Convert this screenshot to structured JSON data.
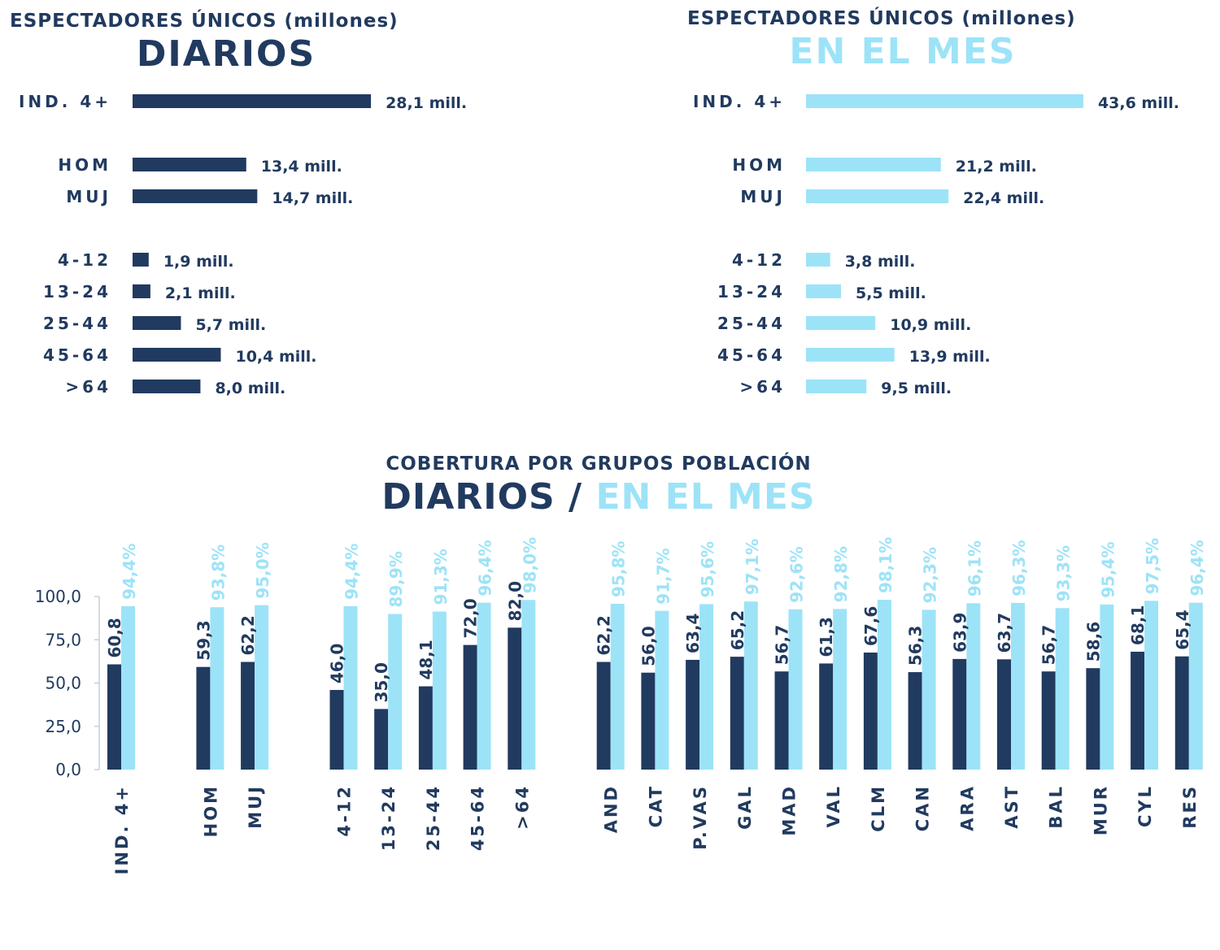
{
  "colors": {
    "dark": "#213a5f",
    "light": "#9de3f7",
    "axis": "#c8cdd8"
  },
  "chart_data": [
    {
      "type": "bar",
      "orientation": "horizontal",
      "supertitle": "ESPECTADORES ÚNICOS (millones)",
      "title": "DIARIOS",
      "categories": [
        "IND. 4+",
        "HOM",
        "MUJ",
        "4-12",
        "13-24",
        "25-44",
        "45-64",
        ">64"
      ],
      "values": [
        28.1,
        13.4,
        14.7,
        1.9,
        2.1,
        5.7,
        10.4,
        8.0
      ],
      "data_labels": [
        "28,1 mill.",
        "13,4 mill.",
        "14,7 mill.",
        "1,9 mill.",
        "2,1 mill.",
        "5,7 mill.",
        "10,4 mill.",
        "8,0 mill."
      ],
      "color": "#213a5f"
    },
    {
      "type": "bar",
      "orientation": "horizontal",
      "supertitle": "ESPECTADORES ÚNICOS (millones)",
      "title": "EN EL MES",
      "categories": [
        "IND. 4+",
        "HOM",
        "MUJ",
        "4-12",
        "13-24",
        "25-44",
        "45-64",
        ">64"
      ],
      "values": [
        43.6,
        21.2,
        22.4,
        3.8,
        5.5,
        10.9,
        13.9,
        9.5
      ],
      "data_labels": [
        "43,6 mill.",
        "21,2 mill.",
        "22,4 mill.",
        "3,8 mill.",
        "5,5 mill.",
        "10,9 mill.",
        "13,9 mill.",
        "9,5 mill."
      ],
      "color": "#9de3f7"
    },
    {
      "type": "bar",
      "supertitle": "COBERTURA POR GRUPOS POBLACIÓN",
      "title_parts": [
        "DIARIOS",
        "/",
        "EN EL MES"
      ],
      "categories": [
        "IND. 4+",
        "HOM",
        "MUJ",
        "4-12",
        "13-24",
        "25-44",
        "45-64",
        ">64",
        "AND",
        "CAT",
        "P.VAS",
        "GAL",
        "MAD",
        "VAL",
        "CLM",
        "CAN",
        "ARA",
        "AST",
        "BAL",
        "MUR",
        "CYL",
        "RES"
      ],
      "series": [
        {
          "values": [
            60.8,
            59.3,
            62.2,
            46.0,
            35.0,
            48.1,
            72.0,
            82.0,
            62.2,
            56.0,
            63.4,
            65.2,
            56.7,
            61.3,
            67.6,
            56.3,
            63.9,
            63.7,
            56.7,
            58.6,
            68.1,
            65.4
          ],
          "data_labels": [
            "60,8",
            "59,3",
            "62,2",
            "46,0",
            "35,0",
            "48,1",
            "72,0",
            "82,0",
            "62,2",
            "56,0",
            "63,4",
            "65,2",
            "56,7",
            "61,3",
            "67,6",
            "56,3",
            "63,9",
            "63,7",
            "56,7",
            "58,6",
            "68,1",
            "65,4"
          ],
          "color": "#213a5f"
        },
        {
          "values": [
            94.4,
            93.8,
            95.0,
            94.4,
            89.9,
            91.3,
            96.4,
            98.0,
            95.8,
            91.7,
            95.6,
            97.1,
            92.6,
            92.8,
            98.1,
            92.3,
            96.1,
            96.3,
            93.3,
            95.4,
            97.5,
            96.4
          ],
          "data_labels": [
            "94,4%",
            "93,8%",
            "95,0%",
            "94,4%",
            "89,9%",
            "91,3%",
            "96,4%",
            "98,0%",
            "95,8%",
            "91,7%",
            "95,6%",
            "97,1%",
            "92,6%",
            "92,8%",
            "98,1%",
            "92,3%",
            "96,1%",
            "96,3%",
            "93,3%",
            "95,4%",
            "97,5%",
            "96,4%"
          ],
          "color": "#9de3f7"
        }
      ],
      "ylim": [
        0,
        100
      ],
      "yticks": [
        "0,0",
        "25,0",
        "50,0",
        "75,0",
        "100,0"
      ],
      "grid": false
    }
  ]
}
